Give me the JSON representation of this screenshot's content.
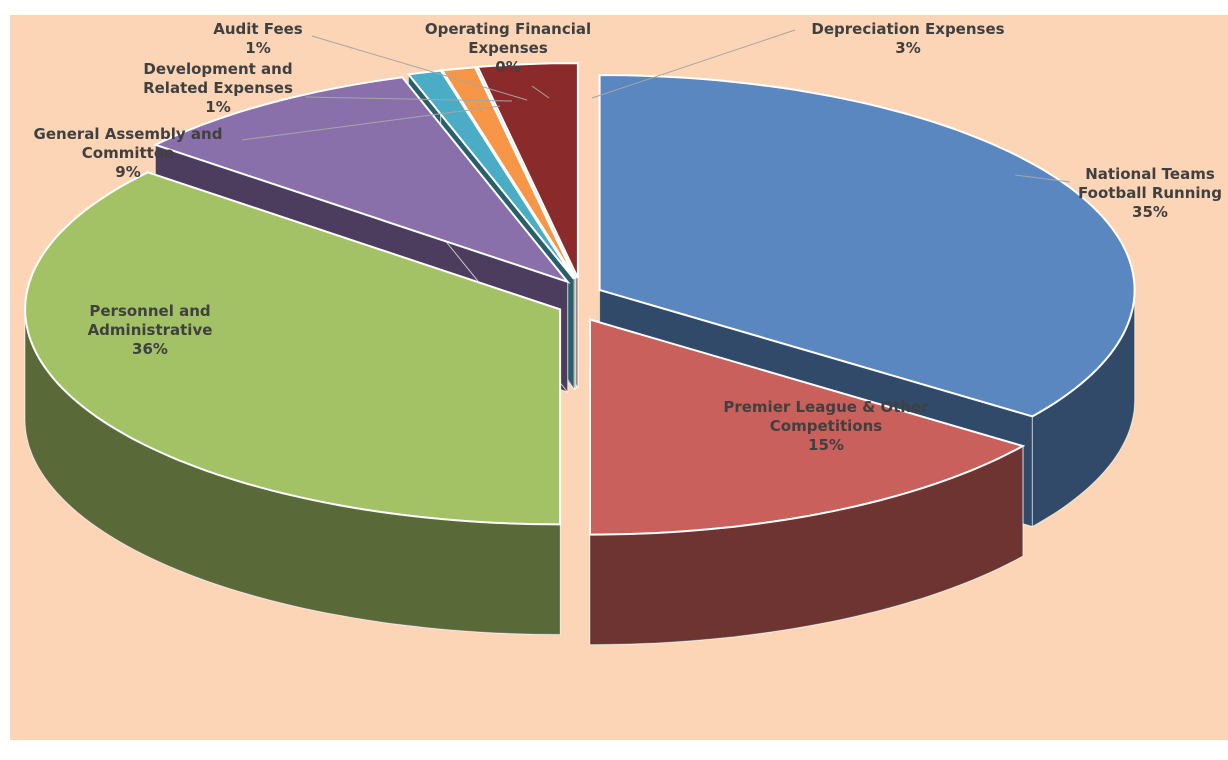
{
  "chart_data": {
    "type": "pie3d",
    "categories": [
      "National Teams Football Running",
      "Premier League & Other Competitions",
      "Personnel and Administrative",
      "General Assembly and Committee",
      "Development and Related Expenses",
      "Audit Fees",
      "Operating Financial Expenses",
      "Depreciation Expenses"
    ],
    "values": [
      35,
      15,
      36,
      9,
      1,
      1,
      0,
      3
    ],
    "value_labels": [
      "35%",
      "15%",
      "36%",
      "9%",
      "1%",
      "1%",
      "0%",
      "3%"
    ],
    "colors": [
      "#5a87c0",
      "#c9605c",
      "#a3c266",
      "#8a70ab",
      "#4bacc6",
      "#f79646",
      "#1f497d",
      "#8b2a2a"
    ]
  }
}
